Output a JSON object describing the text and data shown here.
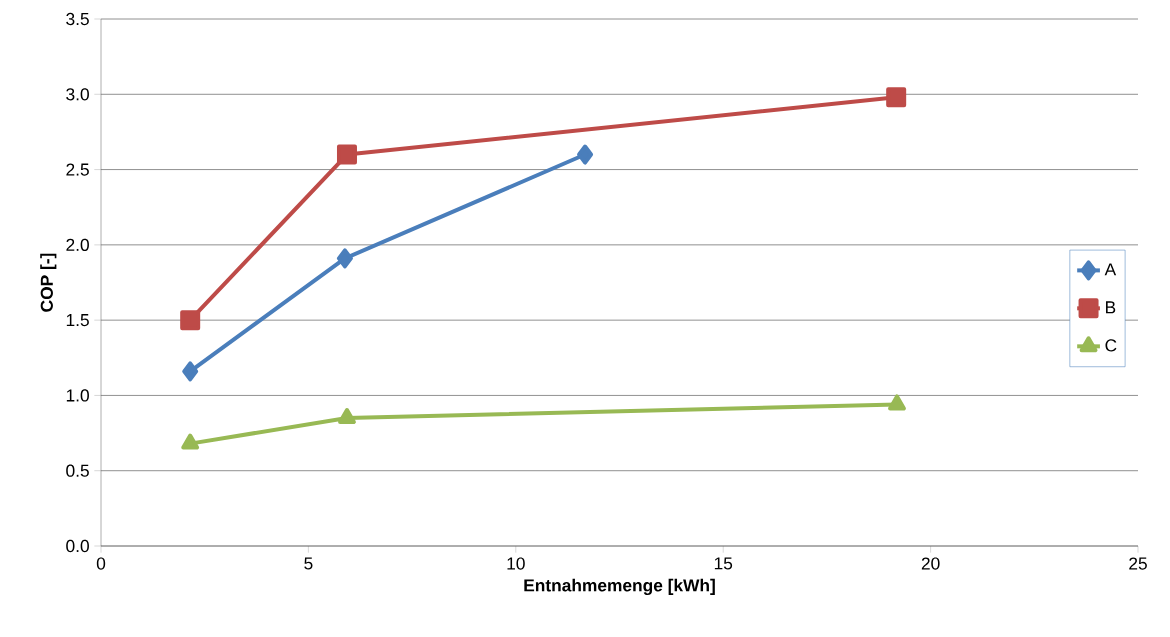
{
  "chart_data": {
    "type": "line",
    "xlabel": "Entnahmemenge [kWh]",
    "ylabel": "COP [-]",
    "xlim": [
      0,
      25
    ],
    "xticks": [
      0,
      5,
      10,
      15,
      20,
      25
    ],
    "ylim": [
      0,
      3.5
    ],
    "yticks": [
      {
        "value": 0,
        "label": "0.0"
      },
      {
        "value": 0.5,
        "label": "0.5"
      },
      {
        "value": 1,
        "label": "1.0"
      },
      {
        "value": 1.5,
        "label": "1.5"
      },
      {
        "value": 2,
        "label": "2.0"
      },
      {
        "value": 2.5,
        "label": "2.5"
      },
      {
        "value": 3,
        "label": "3.0"
      },
      {
        "value": 3.5,
        "label": "3.5"
      }
    ],
    "grid": "y",
    "legend": "right",
    "line_style": "solid",
    "series": [
      {
        "name": "A",
        "color": "#4a7ebb",
        "marker": "diamond",
        "x": [
          2.15,
          5.88,
          11.67
        ],
        "values": [
          1.16,
          1.91,
          2.6
        ]
      },
      {
        "name": "B",
        "color": "#be4b48",
        "marker": "square",
        "x": [
          2.15,
          5.93,
          19.17
        ],
        "values": [
          1.5,
          2.6,
          2.98
        ]
      },
      {
        "name": "C",
        "color": "#98b954",
        "marker": "triangle",
        "x": [
          2.15,
          5.93,
          19.19
        ],
        "values": [
          0.68,
          0.85,
          0.94
        ]
      }
    ]
  }
}
